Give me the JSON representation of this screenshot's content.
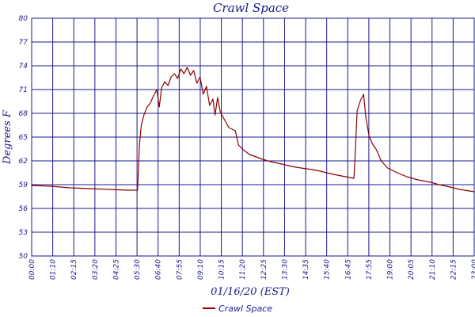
{
  "chart_data": {
    "type": "line",
    "title": "Crawl Space",
    "xlabel": "01/16/20 (EST)",
    "ylabel": "Degrees F",
    "ylim": [
      50,
      80
    ],
    "yticks": [
      "50",
      "53",
      "56",
      "59",
      "62",
      "65",
      "68",
      "71",
      "74",
      "77",
      "80"
    ],
    "xticks": [
      "00:00",
      "01:10",
      "02:15",
      "03:20",
      "04:25",
      "05:30",
      "06:40",
      "07:55",
      "09:10",
      "10:15",
      "11:20",
      "12:25",
      "13:30",
      "14:35",
      "15:40",
      "16:45",
      "17:55",
      "19:00",
      "20:05",
      "21:10",
      "22:15",
      "23:00"
    ],
    "grid": true,
    "legend_position": "bottom",
    "series_color": "#8b0000",
    "series": [
      {
        "name": "Crawl Space",
        "points": [
          [
            "00:00",
            58.9
          ],
          [
            "01:00",
            58.8
          ],
          [
            "02:00",
            58.6
          ],
          [
            "03:00",
            58.5
          ],
          [
            "04:00",
            58.4
          ],
          [
            "05:00",
            58.3
          ],
          [
            "05:30",
            58.3
          ],
          [
            "05:36",
            64.0
          ],
          [
            "05:42",
            66.5
          ],
          [
            "05:50",
            67.8
          ],
          [
            "06:00",
            68.8
          ],
          [
            "06:10",
            69.3
          ],
          [
            "06:20",
            70.2
          ],
          [
            "06:30",
            71.0
          ],
          [
            "06:38",
            68.8
          ],
          [
            "06:45",
            71.2
          ],
          [
            "06:55",
            72.0
          ],
          [
            "07:05",
            71.5
          ],
          [
            "07:15",
            72.6
          ],
          [
            "07:25",
            73.0
          ],
          [
            "07:35",
            72.4
          ],
          [
            "07:45",
            73.6
          ],
          [
            "07:55",
            73.0
          ],
          [
            "08:05",
            73.8
          ],
          [
            "08:15",
            72.8
          ],
          [
            "08:25",
            73.4
          ],
          [
            "08:35",
            71.8
          ],
          [
            "08:45",
            72.6
          ],
          [
            "08:55",
            70.4
          ],
          [
            "09:05",
            71.4
          ],
          [
            "09:15",
            69.0
          ],
          [
            "09:25",
            69.8
          ],
          [
            "09:32",
            67.8
          ],
          [
            "09:40",
            70.0
          ],
          [
            "09:48",
            68.2
          ],
          [
            "10:00",
            67.3
          ],
          [
            "10:15",
            66.2
          ],
          [
            "10:25",
            66.0
          ],
          [
            "10:35",
            65.8
          ],
          [
            "10:45",
            64.0
          ],
          [
            "11:00",
            63.4
          ],
          [
            "11:20",
            62.8
          ],
          [
            "12:00",
            62.2
          ],
          [
            "12:25",
            61.9
          ],
          [
            "13:00",
            61.6
          ],
          [
            "13:30",
            61.3
          ],
          [
            "14:00",
            61.1
          ],
          [
            "14:35",
            60.9
          ],
          [
            "15:00",
            60.7
          ],
          [
            "15:40",
            60.3
          ],
          [
            "16:45",
            59.8
          ],
          [
            "16:48",
            62.0
          ],
          [
            "16:55",
            68.3
          ],
          [
            "17:05",
            69.6
          ],
          [
            "17:15",
            70.4
          ],
          [
            "17:22",
            67.5
          ],
          [
            "17:32",
            65.2
          ],
          [
            "17:42",
            64.2
          ],
          [
            "17:55",
            63.4
          ],
          [
            "18:10",
            62.0
          ],
          [
            "18:30",
            61.1
          ],
          [
            "19:00",
            60.5
          ],
          [
            "19:30",
            60.0
          ],
          [
            "20:05",
            59.6
          ],
          [
            "20:45",
            59.3
          ],
          [
            "21:10",
            59.0
          ],
          [
            "21:45",
            58.7
          ],
          [
            "22:15",
            58.4
          ],
          [
            "22:45",
            58.2
          ],
          [
            "23:00",
            58.1
          ]
        ]
      }
    ]
  }
}
